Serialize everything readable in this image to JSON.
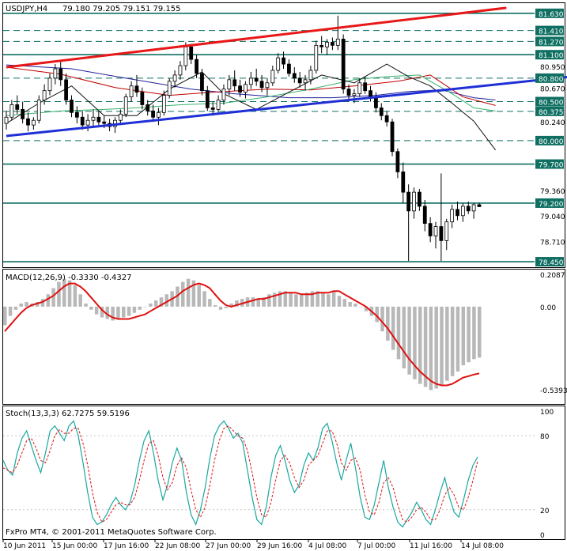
{
  "header": {
    "symbol": "USDJPY,H4",
    "ohlc": "79.180 79.205 79.151 79.155"
  },
  "indicators": {
    "macd_label": "MACD(12,26,9) -0.3330 -0.4327",
    "stoch_label": "Stoch(13,3,3) 62.7275 59.5196"
  },
  "footer": {
    "copyright": "FxPro MT4, © 2001-2011 MetaQuotes Software Corp."
  },
  "colors": {
    "trend_red": "#e81818",
    "trend_blue": "#1f2fd6",
    "level_teal": "#0f6f62",
    "ma_red": "#c00000",
    "ma_navy": "#20209a",
    "ma_green": "#39b36b",
    "ma_black": "#111111",
    "macd_hist": "#b8b8b8",
    "macd_signal": "#e01010",
    "stoch_main": "#1aa7a0",
    "stoch_signal": "#e01010",
    "tag_bg": "#0f6f62"
  },
  "chart_data": [
    {
      "type": "candlestick",
      "title": "USDJPY,H4",
      "x_ticks": [
        "10 Jun 2011",
        "15 Jun 00:00",
        "17 Jun 16:00",
        "22 Jun 08:00",
        "27 Jun 00:00",
        "29 Jun 16:00",
        "4 Jul 08:00",
        "7 Jul 00:00",
        "11 Jul 16:00",
        "14 Jul 08:00"
      ],
      "ylim": [
        78.4,
        81.76
      ],
      "price_labels": [
        "81.630",
        "81.410",
        "81.270",
        "81.100",
        "80.950",
        "80.800",
        "80.670",
        "80.500",
        "80.375",
        "80.240",
        "80.000",
        "79.700",
        "79.360",
        "79.200",
        "79.040",
        "78.710",
        "78.450"
      ],
      "highlighted_levels": [
        "81.630",
        "81.410",
        "81.270",
        "81.100",
        "80.800",
        "80.500",
        "80.375",
        "80.000",
        "79.700",
        "79.200",
        "78.450"
      ],
      "teal_lines": [
        81.63,
        81.1,
        79.7,
        79.2,
        78.45
      ],
      "dashed_lines": [
        81.41,
        81.27,
        80.8,
        80.5,
        80.375,
        80.0
      ],
      "trendlines": [
        {
          "name": "resistance",
          "from": [
            0,
            80.94
          ],
          "to": [
            92,
            81.7
          ]
        },
        {
          "name": "support",
          "from": [
            0,
            80.06
          ],
          "to": [
            104,
            80.82
          ]
        }
      ],
      "moving_averages": [
        {
          "name": "ma-navy",
          "points": [
            [
              0,
              80.97
            ],
            [
              12,
              80.92
            ],
            [
              22,
              80.8
            ],
            [
              34,
              80.66
            ],
            [
              42,
              80.6
            ],
            [
              52,
              80.55
            ],
            [
              60,
              80.55
            ],
            [
              68,
              80.58
            ],
            [
              74,
              80.63
            ],
            [
              80,
              80.65
            ],
            [
              86,
              80.55
            ],
            [
              90,
              80.52
            ]
          ]
        },
        {
          "name": "ma-red",
          "points": [
            [
              0,
              80.94
            ],
            [
              10,
              80.85
            ],
            [
              20,
              80.68
            ],
            [
              30,
              80.58
            ],
            [
              38,
              80.62
            ],
            [
              48,
              80.66
            ],
            [
              56,
              80.65
            ],
            [
              64,
              80.7
            ],
            [
              72,
              80.76
            ],
            [
              78,
              80.84
            ],
            [
              84,
              80.56
            ],
            [
              90,
              80.45
            ]
          ]
        },
        {
          "name": "ma-green",
          "points": [
            [
              0,
              80.32
            ],
            [
              10,
              80.38
            ],
            [
              18,
              80.4
            ],
            [
              24,
              80.42
            ],
            [
              32,
              80.46
            ],
            [
              40,
              80.48
            ],
            [
              48,
              80.56
            ],
            [
              56,
              80.66
            ],
            [
              64,
              80.78
            ],
            [
              70,
              80.82
            ],
            [
              76,
              80.84
            ],
            [
              82,
              80.6
            ],
            [
              86,
              80.42
            ],
            [
              90,
              80.38
            ]
          ]
        },
        {
          "name": "ma-black",
          "points": [
            [
              0,
              80.22
            ],
            [
              6,
              80.48
            ],
            [
              12,
              80.7
            ],
            [
              18,
              80.32
            ],
            [
              24,
              80.32
            ],
            [
              30,
              80.66
            ],
            [
              36,
              80.88
            ],
            [
              40,
              80.6
            ],
            [
              46,
              80.4
            ],
            [
              52,
              80.62
            ],
            [
              58,
              80.84
            ],
            [
              64,
              80.74
            ],
            [
              70,
              80.98
            ],
            [
              74,
              80.82
            ],
            [
              78,
              80.7
            ],
            [
              82,
              80.48
            ],
            [
              86,
              80.25
            ],
            [
              90,
              79.88
            ]
          ]
        }
      ],
      "candles": [
        [
          80.22,
          80.38,
          80.14,
          80.3
        ],
        [
          80.3,
          80.52,
          80.26,
          80.46
        ],
        [
          80.46,
          80.58,
          80.34,
          80.4
        ],
        [
          80.4,
          80.5,
          80.22,
          80.28
        ],
        [
          80.28,
          80.36,
          80.12,
          80.2
        ],
        [
          80.2,
          80.3,
          80.14,
          80.26
        ],
        [
          80.26,
          80.58,
          80.22,
          80.52
        ],
        [
          80.52,
          80.72,
          80.46,
          80.64
        ],
        [
          80.64,
          80.86,
          80.58,
          80.8
        ],
        [
          80.8,
          80.98,
          80.72,
          80.92
        ],
        [
          80.92,
          81.02,
          80.7,
          80.78
        ],
        [
          80.78,
          80.86,
          80.46,
          80.52
        ],
        [
          80.52,
          80.58,
          80.3,
          80.36
        ],
        [
          80.36,
          80.44,
          80.22,
          80.3
        ],
        [
          80.3,
          80.38,
          80.14,
          80.2
        ],
        [
          80.2,
          80.34,
          80.12,
          80.26
        ],
        [
          80.26,
          80.4,
          80.18,
          80.3
        ],
        [
          80.3,
          80.38,
          80.2,
          80.24
        ],
        [
          80.24,
          80.32,
          80.16,
          80.22
        ],
        [
          80.22,
          80.28,
          80.12,
          80.18
        ],
        [
          80.18,
          80.3,
          80.1,
          80.26
        ],
        [
          80.26,
          80.4,
          80.2,
          80.34
        ],
        [
          80.34,
          80.6,
          80.3,
          80.56
        ],
        [
          80.56,
          80.76,
          80.5,
          80.7
        ],
        [
          80.7,
          80.84,
          80.56,
          80.62
        ],
        [
          80.62,
          80.68,
          80.4,
          80.46
        ],
        [
          80.46,
          80.52,
          80.32,
          80.38
        ],
        [
          80.38,
          80.46,
          80.24,
          80.3
        ],
        [
          80.3,
          80.42,
          80.2,
          80.36
        ],
        [
          80.36,
          80.64,
          80.32,
          80.58
        ],
        [
          80.58,
          80.8,
          80.54,
          80.76
        ],
        [
          80.76,
          80.9,
          80.68,
          80.84
        ],
        [
          80.84,
          81.02,
          80.78,
          80.96
        ],
        [
          80.96,
          81.26,
          80.9,
          81.2
        ],
        [
          81.2,
          81.24,
          80.98,
          81.04
        ],
        [
          81.04,
          81.1,
          80.8,
          80.86
        ],
        [
          80.86,
          80.92,
          80.58,
          80.64
        ],
        [
          80.64,
          80.7,
          80.38,
          80.42
        ],
        [
          80.42,
          80.5,
          80.32,
          80.4
        ],
        [
          80.4,
          80.58,
          80.36,
          80.52
        ],
        [
          80.52,
          80.72,
          80.46,
          80.66
        ],
        [
          80.66,
          80.84,
          80.58,
          80.78
        ],
        [
          80.78,
          80.9,
          80.64,
          80.7
        ],
        [
          80.7,
          80.78,
          80.56,
          80.62
        ],
        [
          80.62,
          80.76,
          80.54,
          80.72
        ],
        [
          80.72,
          80.88,
          80.66,
          80.8
        ],
        [
          80.8,
          80.92,
          80.7,
          80.76
        ],
        [
          80.76,
          80.84,
          80.62,
          80.68
        ],
        [
          80.68,
          80.8,
          80.58,
          80.74
        ],
        [
          80.74,
          80.96,
          80.7,
          80.9
        ],
        [
          80.9,
          81.12,
          80.86,
          81.06
        ],
        [
          81.06,
          81.14,
          80.92,
          80.98
        ],
        [
          80.98,
          81.04,
          80.82,
          80.86
        ],
        [
          80.86,
          80.94,
          80.74,
          80.8
        ],
        [
          80.8,
          80.88,
          80.68,
          80.74
        ],
        [
          80.74,
          80.84,
          80.64,
          80.78
        ],
        [
          80.78,
          80.96,
          80.72,
          80.9
        ],
        [
          80.9,
          81.28,
          80.86,
          81.22
        ],
        [
          81.22,
          81.34,
          81.12,
          81.2
        ],
        [
          81.2,
          81.3,
          81.1,
          81.26
        ],
        [
          81.26,
          81.32,
          81.16,
          81.22
        ],
        [
          81.22,
          81.6,
          81.16,
          81.3
        ],
        [
          81.3,
          81.36,
          80.6,
          80.66
        ],
        [
          80.66,
          80.72,
          80.5,
          80.58
        ],
        [
          80.58,
          80.66,
          80.48,
          80.6
        ],
        [
          80.6,
          80.8,
          80.56,
          80.74
        ],
        [
          80.74,
          80.82,
          80.6,
          80.64
        ],
        [
          80.64,
          80.7,
          80.5,
          80.56
        ],
        [
          80.56,
          80.62,
          80.36,
          80.42
        ],
        [
          80.42,
          80.48,
          80.26,
          80.32
        ],
        [
          80.32,
          80.38,
          80.18,
          80.24
        ],
        [
          80.24,
          80.28,
          79.8,
          79.86
        ],
        [
          79.86,
          79.9,
          79.52,
          79.6
        ],
        [
          79.6,
          79.72,
          79.2,
          79.34
        ],
        [
          79.34,
          79.44,
          78.46,
          79.1
        ],
        [
          79.1,
          79.4,
          79.0,
          79.34
        ],
        [
          79.34,
          79.38,
          79.1,
          79.16
        ],
        [
          79.16,
          79.24,
          78.84,
          78.94
        ],
        [
          78.94,
          79.02,
          78.7,
          78.78
        ],
        [
          78.78,
          78.96,
          78.62,
          78.9
        ],
        [
          78.9,
          79.58,
          78.46,
          78.72
        ],
        [
          78.72,
          79.0,
          78.6,
          78.96
        ],
        [
          78.96,
          79.18,
          78.88,
          79.12
        ],
        [
          79.12,
          79.22,
          78.98,
          79.04
        ],
        [
          79.04,
          79.2,
          78.96,
          79.16
        ],
        [
          79.16,
          79.22,
          79.06,
          79.1
        ],
        [
          79.1,
          79.2,
          79.0,
          79.18
        ],
        [
          79.18,
          79.205,
          79.151,
          79.155
        ]
      ]
    },
    {
      "type": "bar+line",
      "title": "MACD(12,26,9) -0.3330 -0.4327",
      "ylim": [
        -0.62,
        0.24
      ],
      "y_ticks": [
        "0.2087",
        "0.00",
        "-0.5393"
      ],
      "histogram": [
        -0.12,
        -0.06,
        -0.02,
        0.02,
        0.03,
        0.02,
        0.03,
        0.05,
        0.08,
        0.12,
        0.16,
        0.18,
        0.17,
        0.14,
        0.08,
        0.02,
        -0.02,
        -0.05,
        -0.07,
        -0.08,
        -0.09,
        -0.08,
        -0.07,
        -0.06,
        -0.04,
        -0.02,
        0.0,
        0.02,
        0.04,
        0.06,
        0.08,
        0.1,
        0.13,
        0.16,
        0.18,
        0.17,
        0.14,
        0.1,
        0.05,
        0.01,
        -0.02,
        -0.01,
        0.02,
        0.04,
        0.05,
        0.06,
        0.06,
        0.05,
        0.06,
        0.08,
        0.09,
        0.1,
        0.1,
        0.09,
        0.08,
        0.08,
        0.09,
        0.1,
        0.1,
        0.09,
        0.08,
        0.1,
        0.07,
        0.05,
        0.03,
        0.02,
        0.0,
        -0.03,
        -0.06,
        -0.1,
        -0.16,
        -0.22,
        -0.28,
        -0.34,
        -0.4,
        -0.44,
        -0.47,
        -0.5,
        -0.52,
        -0.54,
        -0.53,
        -0.51,
        -0.48,
        -0.45,
        -0.42,
        -0.38,
        -0.36,
        -0.34,
        -0.33
      ],
      "signal": [
        -0.16,
        -0.12,
        -0.08,
        -0.04,
        -0.01,
        0.01,
        0.02,
        0.03,
        0.05,
        0.07,
        0.1,
        0.13,
        0.15,
        0.15,
        0.13,
        0.1,
        0.06,
        0.02,
        -0.02,
        -0.05,
        -0.07,
        -0.08,
        -0.08,
        -0.08,
        -0.07,
        -0.06,
        -0.05,
        -0.03,
        -0.01,
        0.01,
        0.03,
        0.05,
        0.07,
        0.1,
        0.12,
        0.14,
        0.15,
        0.14,
        0.12,
        0.08,
        0.04,
        0.01,
        0.0,
        0.01,
        0.02,
        0.03,
        0.04,
        0.05,
        0.05,
        0.06,
        0.07,
        0.08,
        0.09,
        0.09,
        0.09,
        0.08,
        0.08,
        0.08,
        0.09,
        0.09,
        0.09,
        0.1,
        0.1,
        0.08,
        0.06,
        0.04,
        0.02,
        0.0,
        -0.03,
        -0.06,
        -0.1,
        -0.14,
        -0.19,
        -0.24,
        -0.29,
        -0.34,
        -0.38,
        -0.42,
        -0.45,
        -0.48,
        -0.5,
        -0.51,
        -0.51,
        -0.5,
        -0.48,
        -0.46,
        -0.45,
        -0.44,
        -0.4327
      ]
    },
    {
      "type": "line",
      "title": "Stoch(13,3,3) 62.7275 59.5196",
      "ylim": [
        0,
        100
      ],
      "y_ticks": [
        "100",
        "80",
        "20",
        "0"
      ],
      "main": [
        60,
        52,
        48,
        66,
        78,
        84,
        72,
        60,
        50,
        66,
        84,
        88,
        82,
        76,
        88,
        92,
        80,
        58,
        34,
        14,
        8,
        10,
        16,
        24,
        30,
        24,
        20,
        26,
        40,
        60,
        76,
        84,
        66,
        44,
        28,
        40,
        58,
        70,
        60,
        34,
        16,
        8,
        20,
        38,
        62,
        80,
        88,
        92,
        86,
        78,
        82,
        74,
        52,
        30,
        12,
        8,
        22,
        46,
        64,
        72,
        60,
        44,
        34,
        40,
        56,
        66,
        60,
        70,
        86,
        90,
        76,
        58,
        44,
        60,
        74,
        54,
        30,
        14,
        12,
        24,
        42,
        60,
        38,
        22,
        10,
        6,
        12,
        18,
        26,
        20,
        12,
        8,
        20,
        34,
        46,
        30,
        18,
        14,
        28,
        44,
        56,
        62.7275
      ],
      "signal": [
        54,
        52,
        50,
        56,
        66,
        76,
        78,
        70,
        60,
        58,
        68,
        80,
        85,
        82,
        82,
        86,
        86,
        74,
        56,
        34,
        18,
        10,
        12,
        18,
        24,
        26,
        24,
        24,
        30,
        44,
        60,
        74,
        76,
        64,
        46,
        36,
        42,
        56,
        62,
        54,
        36,
        20,
        14,
        22,
        40,
        60,
        76,
        86,
        88,
        84,
        80,
        78,
        68,
        50,
        30,
        16,
        14,
        26,
        44,
        60,
        64,
        58,
        46,
        38,
        44,
        56,
        60,
        64,
        74,
        84,
        84,
        74,
        58,
        52,
        60,
        62,
        52,
        32,
        18,
        16,
        26,
        42,
        46,
        38,
        24,
        12,
        10,
        14,
        20,
        22,
        18,
        12,
        12,
        20,
        32,
        38,
        32,
        22,
        20,
        30,
        44,
        59.5196
      ]
    }
  ]
}
